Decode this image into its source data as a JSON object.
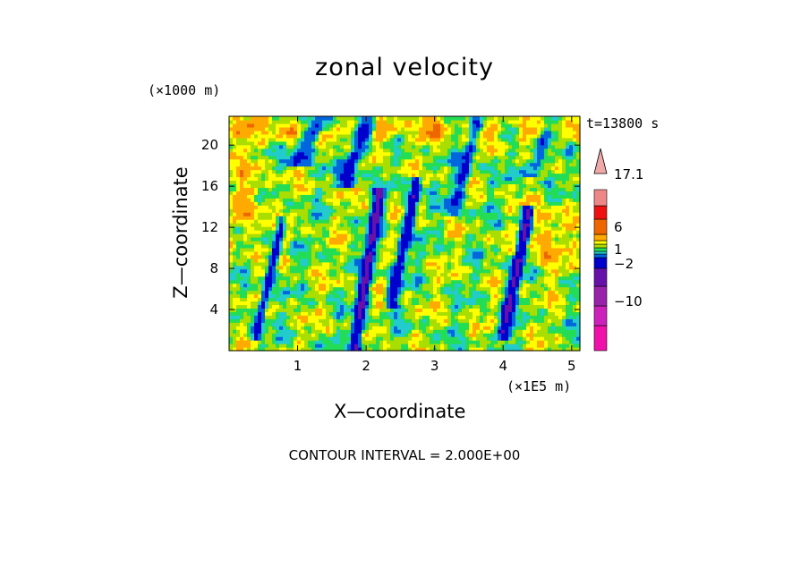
{
  "chart_data": {
    "type": "heatmap",
    "title": "zonal velocity",
    "xlabel": "X—coordinate",
    "ylabel": "Z—coordinate",
    "x_units": "(×1E5 m)",
    "y_units": "(×1000 m)",
    "time_label": "t=13800 s",
    "footer": "CONTOUR INTERVAL = 2.000E+00",
    "xlim": [
      0,
      5.12
    ],
    "ylim": [
      0,
      22.8
    ],
    "x_ticks": [
      1,
      2,
      3,
      4,
      5
    ],
    "x_tick_labels": [
      "1",
      "2",
      "3",
      "4",
      "5"
    ],
    "y_ticks": [
      4,
      8,
      12,
      16,
      20
    ],
    "y_tick_labels": [
      "4",
      "8",
      "12",
      "16",
      "20"
    ],
    "colorbar": {
      "levels": [
        -18,
        -14,
        -10,
        -6,
        -2,
        0,
        1,
        2,
        3,
        4,
        6,
        10,
        14,
        17.1
      ],
      "colors": [
        "#ee11aa",
        "#cc22bb",
        "#9922aa",
        "#6611aa",
        "#0000cc",
        "#0066dd",
        "#22cccc",
        "#22dd55",
        "#aadd00",
        "#ffff00",
        "#ffaa00",
        "#ee6600",
        "#ee1111",
        "#ee8888",
        "#f0a8a8"
      ],
      "labels": [
        {
          "value": 17.1,
          "text": "17.1"
        },
        {
          "value": 6,
          "text": "6"
        },
        {
          "value": 1,
          "text": "1"
        },
        {
          "value": -2,
          "text": "−2"
        },
        {
          "value": -10,
          "text": "−10"
        }
      ]
    },
    "field_description_levels": "velocity field ranges roughly -12 to 17 m/s; predominantly yellow/green (0-4) with orange maxima near top and strong blue (negative) streaks near x = 0.6, 2.0, 2.5, 4.2"
  }
}
